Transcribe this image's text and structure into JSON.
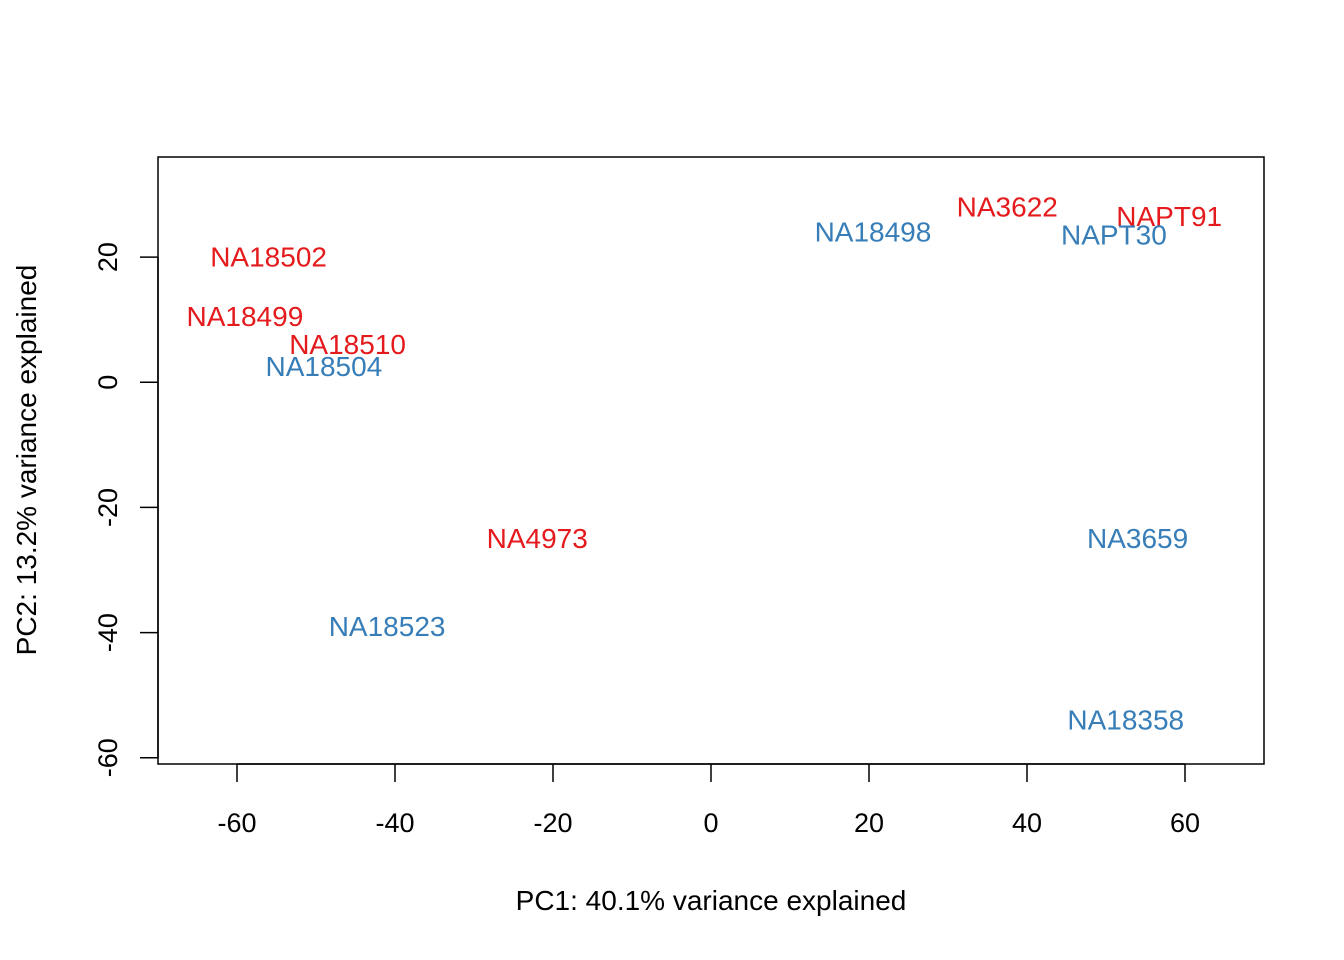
{
  "chart_data": {
    "type": "scatter",
    "title": "",
    "xlabel": "PC1: 40.1% variance explained",
    "ylabel": "PC2: 13.2% variance explained",
    "xlim": [
      -70,
      70
    ],
    "ylim": [
      -61,
      36
    ],
    "xticks": [
      "-60",
      "-40",
      "-20",
      "0",
      "20",
      "40",
      "60"
    ],
    "yticks": [
      "-60",
      "-40",
      "-20",
      "0",
      "20"
    ],
    "grid": false,
    "legend": "none",
    "colors": {
      "red": "#e41a1c",
      "blue": "#377eb8"
    },
    "points": [
      {
        "label": "NA18502",
        "x": -56,
        "y": 20,
        "color": "red"
      },
      {
        "label": "NA18499",
        "x": -59,
        "y": 10.5,
        "color": "red"
      },
      {
        "label": "NA18510",
        "x": -46,
        "y": 6,
        "color": "red"
      },
      {
        "label": "NA18504",
        "x": -49,
        "y": 2.5,
        "color": "blue"
      },
      {
        "label": "NA4973",
        "x": -22,
        "y": -25,
        "color": "red"
      },
      {
        "label": "NA18523",
        "x": -41,
        "y": -39,
        "color": "blue"
      },
      {
        "label": "NA18498",
        "x": 20.5,
        "y": 24,
        "color": "blue"
      },
      {
        "label": "NA3622",
        "x": 37.5,
        "y": 28,
        "color": "red"
      },
      {
        "label": "NAPT91",
        "x": 58,
        "y": 26.5,
        "color": "red"
      },
      {
        "label": "NAPT30",
        "x": 51,
        "y": 23.5,
        "color": "blue"
      },
      {
        "label": "NA3659",
        "x": 54,
        "y": -25,
        "color": "blue"
      },
      {
        "label": "NA18358",
        "x": 52.5,
        "y": -54,
        "color": "blue"
      }
    ]
  }
}
